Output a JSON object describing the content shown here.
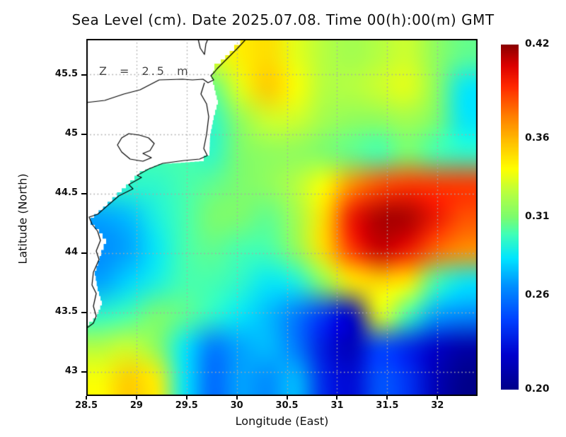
{
  "title": "Sea Level (cm). Date 2025.07.08. Time 00(h):00(m) GMT",
  "chart_data": {
    "type": "heatmap",
    "title": "Sea Level (cm). Date 2025.07.08. Time 00(h):00(m) GMT",
    "xlabel": "Longitude (East)",
    "ylabel": "Latitude (North)",
    "annotation": "Z = 2.5 m",
    "grid": true,
    "xlim": [
      28.5,
      32.4
    ],
    "ylim": [
      42.8,
      45.8
    ],
    "xticks": {
      "values": [
        28.5,
        29,
        29.5,
        30,
        30.5,
        31,
        31.5,
        32
      ],
      "labels": [
        "28.5",
        "29",
        "29.5",
        "30",
        "30.5",
        "31",
        "31.5",
        "32"
      ]
    },
    "yticks": {
      "values": [
        43,
        43.5,
        44,
        44.5,
        45,
        45.5
      ],
      "labels": [
        "43",
        "43.5",
        "44",
        "44.5",
        "45",
        "45.5"
      ]
    },
    "colorbar": {
      "position": "right",
      "min": 0.2,
      "max": 0.42,
      "tick_values": [
        0.42,
        0.36,
        0.31,
        0.26,
        0.2
      ],
      "tick_labels": [
        "0.42",
        "0.36",
        "0.31",
        "0.26",
        "0.20"
      ]
    },
    "colormap_stops": [
      {
        "t": 0.0,
        "color": "#00008B"
      },
      {
        "t": 0.1,
        "color": "#0000CD"
      },
      {
        "t": 0.2,
        "color": "#0040FF"
      },
      {
        "t": 0.3,
        "color": "#0090FF"
      },
      {
        "t": 0.38,
        "color": "#00E5FF"
      },
      {
        "t": 0.45,
        "color": "#40FFB7"
      },
      {
        "t": 0.5,
        "color": "#7CFC6E"
      },
      {
        "t": 0.57,
        "color": "#B7FF40"
      },
      {
        "t": 0.64,
        "color": "#FFFF00"
      },
      {
        "t": 0.72,
        "color": "#FFBE00"
      },
      {
        "t": 0.8,
        "color": "#FF7800"
      },
      {
        "t": 0.88,
        "color": "#FF2800"
      },
      {
        "t": 0.94,
        "color": "#DC0000"
      },
      {
        "t": 1.0,
        "color": "#8B0000"
      }
    ],
    "lon": [
      28.5,
      28.8,
      29.1,
      29.4,
      29.7,
      30.0,
      30.3,
      30.6,
      30.9,
      31.2,
      31.5,
      31.8,
      32.1,
      32.4
    ],
    "lat": [
      45.8,
      45.5,
      45.2,
      44.9,
      44.6,
      44.3,
      44.0,
      43.7,
      43.4,
      43.1,
      42.8
    ],
    "values": [
      [
        0.33,
        0.33,
        0.33,
        0.335,
        0.335,
        0.345,
        0.35,
        0.335,
        0.325,
        0.32,
        0.325,
        0.33,
        0.315,
        0.305
      ],
      [
        0.31,
        0.31,
        0.31,
        0.31,
        0.305,
        0.335,
        0.355,
        0.34,
        0.325,
        0.325,
        0.33,
        0.335,
        0.315,
        0.285
      ],
      [
        0.3,
        0.3,
        0.3,
        0.3,
        0.295,
        0.315,
        0.33,
        0.33,
        0.32,
        0.315,
        0.315,
        0.32,
        0.31,
        0.285
      ],
      [
        0.3,
        0.3,
        0.3,
        0.3,
        0.295,
        0.31,
        0.315,
        0.315,
        0.31,
        0.305,
        0.3,
        0.31,
        0.3,
        0.295
      ],
      [
        0.295,
        0.295,
        0.295,
        0.3,
        0.305,
        0.31,
        0.315,
        0.325,
        0.34,
        0.37,
        0.385,
        0.39,
        0.39,
        0.39
      ],
      [
        0.27,
        0.275,
        0.29,
        0.3,
        0.31,
        0.31,
        0.305,
        0.32,
        0.35,
        0.4,
        0.415,
        0.415,
        0.4,
        0.385
      ],
      [
        0.265,
        0.27,
        0.285,
        0.3,
        0.305,
        0.3,
        0.3,
        0.315,
        0.35,
        0.39,
        0.41,
        0.4,
        0.38,
        0.37
      ],
      [
        0.27,
        0.28,
        0.29,
        0.3,
        0.3,
        0.295,
        0.285,
        0.29,
        0.315,
        0.345,
        0.35,
        0.345,
        0.3,
        0.285
      ],
      [
        0.295,
        0.3,
        0.31,
        0.305,
        0.295,
        0.285,
        0.275,
        0.26,
        0.24,
        0.22,
        0.335,
        0.3,
        0.27,
        0.265
      ],
      [
        0.325,
        0.33,
        0.315,
        0.285,
        0.26,
        0.27,
        0.275,
        0.26,
        0.23,
        0.215,
        0.245,
        0.235,
        0.22,
        0.21
      ],
      [
        0.34,
        0.355,
        0.345,
        0.285,
        0.255,
        0.27,
        0.265,
        0.275,
        0.235,
        0.225,
        0.25,
        0.24,
        0.215,
        0.2
      ]
    ],
    "land": {
      "mask_edge": [
        [
          226,
          0
        ],
        [
          209,
          17
        ],
        [
          190,
          35
        ],
        [
          181,
          45
        ],
        [
          177,
          57
        ],
        [
          181,
          73
        ],
        [
          186,
          93
        ],
        [
          180,
          115
        ],
        [
          175,
          140
        ],
        [
          174,
          165
        ],
        [
          166,
          173
        ],
        [
          140,
          175
        ],
        [
          108,
          177
        ],
        [
          83,
          187
        ],
        [
          68,
          200
        ],
        [
          50,
          217
        ],
        [
          30,
          237
        ],
        [
          11,
          253
        ],
        [
          6,
          263
        ],
        [
          18,
          275
        ],
        [
          28,
          290
        ],
        [
          21,
          307
        ],
        [
          12,
          335
        ],
        [
          16,
          357
        ],
        [
          22,
          377
        ],
        [
          15,
          395
        ],
        [
          4,
          405
        ],
        [
          0,
          409
        ]
      ],
      "coastlines": [
        {
          "closed": false,
          "points": [
            [
              226,
              0
            ],
            [
              214,
              13
            ],
            [
              196,
              31
            ],
            [
              185,
              42
            ],
            [
              181,
              47
            ],
            [
              176,
              52
            ],
            [
              180,
              58
            ],
            [
              172,
              62
            ],
            [
              165,
              57
            ],
            [
              150,
              58
            ],
            [
              136,
              57
            ],
            [
              103,
              58
            ],
            [
              76,
              72
            ],
            [
              53,
              78
            ],
            [
              26,
              87
            ],
            [
              0,
              90
            ]
          ]
        },
        {
          "closed": false,
          "points": [
            [
              158,
              0
            ],
            [
              161,
              13
            ],
            [
              167,
              22
            ],
            [
              169,
              7
            ],
            [
              172,
              0
            ]
          ]
        },
        {
          "closed": false,
          "points": [
            [
              167,
              62
            ],
            [
              162,
              78
            ],
            [
              170,
              92
            ],
            [
              173,
              110
            ],
            [
              170,
              135
            ],
            [
              166,
              155
            ],
            [
              171,
              165
            ],
            [
              160,
              170
            ],
            [
              138,
              172
            ],
            [
              108,
              176
            ],
            [
              88,
              184
            ],
            [
              72,
              193
            ],
            [
              78,
              196
            ],
            [
              60,
              206
            ],
            [
              66,
              212
            ],
            [
              46,
              222
            ],
            [
              32,
              234
            ],
            [
              16,
              248
            ],
            [
              4,
              252
            ],
            [
              8,
              262
            ],
            [
              16,
              272
            ],
            [
              20,
              285
            ],
            [
              14,
              300
            ],
            [
              18,
              312
            ],
            [
              10,
              330
            ],
            [
              8,
              348
            ],
            [
              14,
              360
            ],
            [
              10,
              378
            ],
            [
              14,
              392
            ],
            [
              10,
              402
            ],
            [
              2,
              408
            ]
          ]
        },
        {
          "closed": true,
          "points": [
            [
              50,
              140
            ],
            [
              60,
              134
            ],
            [
              75,
              136
            ],
            [
              88,
              140
            ],
            [
              96,
              148
            ],
            [
              90,
              158
            ],
            [
              80,
              162
            ],
            [
              92,
              168
            ],
            [
              80,
              173
            ],
            [
              62,
              170
            ],
            [
              50,
              160
            ],
            [
              44,
              150
            ]
          ]
        }
      ]
    }
  }
}
